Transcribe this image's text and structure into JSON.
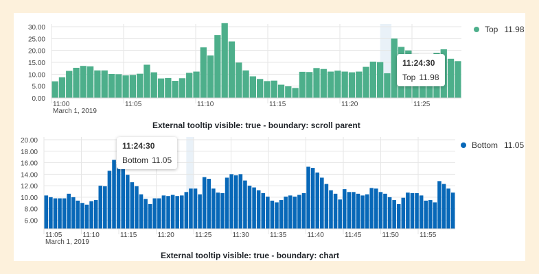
{
  "colors": {
    "top": "#4daf8b",
    "bottom": "#0868b8",
    "background": "#fdf1dc"
  },
  "chart_data": [
    {
      "type": "bar",
      "title": "External tooltip visible: true - boundary: scroll parent",
      "series": [
        {
          "name": "Top",
          "color": "#4daf8b",
          "values": [
            7.0,
            8.7,
            11.4,
            12.7,
            13.5,
            13.3,
            11.6,
            11.6,
            10.1,
            10.0,
            9.5,
            9.7,
            10.2,
            14.0,
            10.8,
            8.2,
            8.4,
            7.2,
            8.3,
            10.6,
            11.1,
            21.3,
            17.9,
            26.5,
            31.5,
            23.8,
            14.9,
            11.6,
            9.1,
            8.0,
            7.1,
            7.3,
            5.6,
            4.9,
            4.2,
            11.0,
            10.9,
            12.6,
            12.2,
            11.1,
            11.5,
            11.1,
            10.8,
            11.1,
            13.1,
            15.3,
            15.1,
            10.4,
            25.0,
            21.5,
            20.0,
            18.5,
            17.0,
            16.5,
            19.0,
            20.5,
            16.5,
            15.5
          ]
        }
      ],
      "x_ticks": [
        "11:00",
        "11:05",
        "11:10",
        "11:15",
        "11:20",
        "11:25"
      ],
      "date_label": "March 1, 2019",
      "ylim": [
        0,
        30
      ],
      "y_ticks": [
        "0.00",
        "5.00",
        "10.00",
        "15.00",
        "20.00",
        "25.00",
        "30.00"
      ],
      "legend": {
        "label": "Top",
        "value": "11.98",
        "position": "right"
      },
      "tooltip": {
        "time": "11:24:30",
        "series": "Top",
        "value": "11.98"
      },
      "grid": true
    },
    {
      "type": "bar",
      "title": "External tooltip visible: true - boundary: chart",
      "series": [
        {
          "name": "Bottom",
          "color": "#0868b8",
          "values": [
            10.3,
            10.0,
            9.8,
            9.8,
            9.8,
            10.6,
            10.0,
            9.4,
            9.0,
            8.7,
            9.3,
            9.5,
            12.0,
            11.9,
            14.6,
            16.5,
            15.8,
            17.0,
            13.9,
            12.6,
            11.9,
            10.5,
            9.7,
            8.8,
            9.8,
            9.8,
            10.3,
            10.2,
            10.4,
            10.2,
            10.3,
            10.9,
            11.5,
            11.5,
            10.5,
            13.5,
            13.2,
            11.5,
            10.8,
            10.7,
            13.4,
            14.0,
            13.8,
            14.0,
            12.9,
            12.0,
            11.7,
            11.2,
            10.7,
            10.1,
            9.4,
            9.1,
            9.5,
            10.1,
            10.3,
            10.1,
            10.4,
            10.7,
            15.3,
            15.1,
            14.3,
            13.4,
            12.3,
            11.2,
            10.6,
            9.6,
            11.4,
            10.9,
            10.9,
            10.6,
            10.3,
            10.5,
            11.6,
            11.5,
            10.9,
            10.6,
            10.0,
            9.5,
            8.8,
            9.9,
            10.8,
            10.7,
            10.7,
            10.3,
            9.4,
            9.5,
            9.1,
            12.8,
            12.3,
            11.5,
            10.8
          ]
        }
      ],
      "x_ticks": [
        "11:05",
        "11:10",
        "11:15",
        "11:20",
        "11:25",
        "11:30",
        "11:35",
        "11:40",
        "11:45",
        "11:50",
        "11:55"
      ],
      "date_label": "March 1, 2019",
      "ylim": [
        4.5,
        20
      ],
      "y_ticks": [
        "6.00",
        "8.00",
        "10.00",
        "12.00",
        "14.00",
        "16.00",
        "18.00",
        "20.00"
      ],
      "legend": {
        "label": "Bottom",
        "value": "11.05",
        "position": "right"
      },
      "tooltip": {
        "time": "11:24:30",
        "series": "Bottom",
        "value": "11.05"
      },
      "grid": true
    }
  ]
}
